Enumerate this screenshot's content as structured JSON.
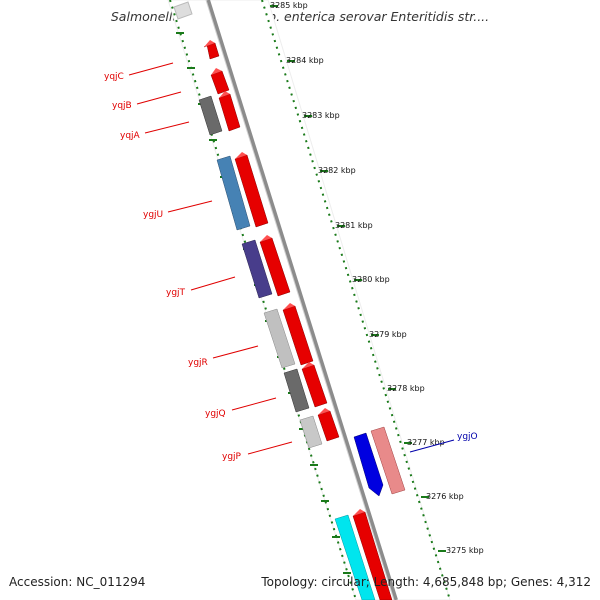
{
  "title": "Salmonella enterica subsp. enterica serovar Enteritidis str....",
  "accession": "Accession: NC_011294",
  "summary": "Topology: circular; Length: 4,685,848 bp; Genes: 4,312",
  "colors": {
    "backbone": "#8c8c8c",
    "tick": "#1a7a1a",
    "forward_gene": "#e60000",
    "label_red": "#e00000",
    "label_blue": "#0000aa"
  },
  "kbp_labels": [
    "3285 kbp",
    "3284 kbp",
    "3283 kbp",
    "3282 kbp",
    "3281 kbp",
    "3280 kbp",
    "3279 kbp",
    "3278 kbp",
    "3277 kbp",
    "3276 kbp",
    "3275 kbp"
  ],
  "gene_labels": [
    {
      "name": "yqjC",
      "color": "red"
    },
    {
      "name": "yqjB",
      "color": "red"
    },
    {
      "name": "yqjA",
      "color": "red"
    },
    {
      "name": "ygjU",
      "color": "red"
    },
    {
      "name": "ygjT",
      "color": "red"
    },
    {
      "name": "ygjR",
      "color": "red"
    },
    {
      "name": "ygjQ",
      "color": "red"
    },
    {
      "name": "ygjP",
      "color": "red"
    },
    {
      "name": "ygjO",
      "color": "blue"
    }
  ]
}
